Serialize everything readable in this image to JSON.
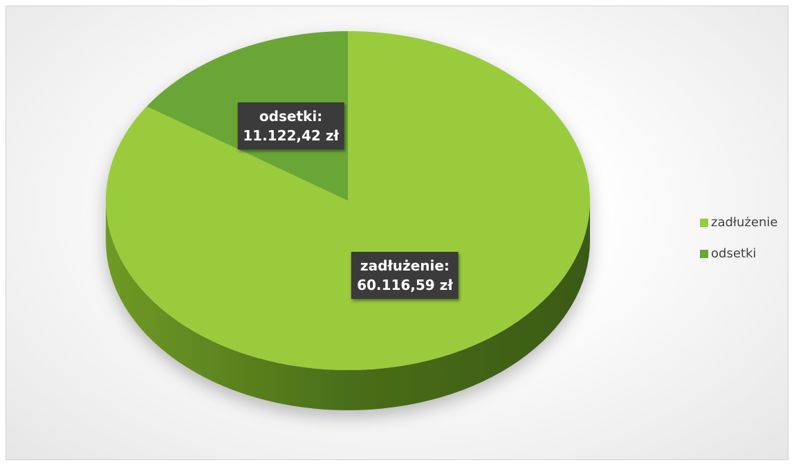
{
  "chart_data": {
    "type": "pie",
    "categories": [
      "zadłużenie",
      "odsetki"
    ],
    "values": [
      60116.59,
      11122.42
    ],
    "value_labels": [
      "zadłużenie:\n60.116,59 zł",
      "odsetki:\n11.122,42 zł"
    ],
    "colors": [
      "#9acb3c",
      "#6aa636"
    ],
    "legend": "right"
  }
}
